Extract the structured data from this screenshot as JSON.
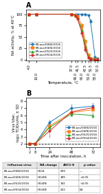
{
  "chart_data": [
    {
      "type": "line",
      "title": "A",
      "x_label": "Temperature, °C",
      "y_label": "NA activity, % at 40°C",
      "x": [
        4.0,
        10.0,
        37.0,
        40.0,
        41.5,
        45.0,
        47.5,
        50.0,
        51.5,
        55.0,
        57.0
      ],
      "xlim": [
        2,
        59
      ],
      "xticks": [
        4.0,
        10.0,
        37.0,
        40.0,
        41.5,
        45.0,
        47.5,
        50.0,
        51.5,
        55.0,
        57.0
      ],
      "ylim": [
        -2,
        110
      ],
      "yticks": [
        0,
        25,
        50,
        75,
        100
      ],
      "legend": "lower left",
      "series": [
        {
          "name": "B/Laos/0080/2016",
          "marker": "circle",
          "values": [
            100,
            100,
            100,
            100,
            100,
            100,
            100,
            98,
            85,
            5,
            2
          ],
          "errors": [
            1,
            1,
            1,
            1,
            1,
            1,
            1,
            2,
            4,
            2,
            1
          ]
        },
        {
          "name": "B/Laos/0406/2016",
          "marker": "square",
          "values": [
            100,
            100,
            100,
            98,
            95,
            75,
            40,
            10,
            3,
            1,
            0
          ],
          "errors": [
            1,
            1,
            1,
            2,
            3,
            5,
            5,
            3,
            1,
            0,
            0
          ]
        },
        {
          "name": "B/Laos/0525/2016",
          "marker": "triangle",
          "values": [
            100,
            100,
            100,
            97,
            92,
            65,
            30,
            6,
            2,
            1,
            0
          ],
          "errors": [
            1,
            1,
            1,
            2,
            3,
            5,
            5,
            2,
            1,
            0,
            0
          ]
        },
        {
          "name": "B/Laos/0554/2016",
          "marker": "circle",
          "values": [
            100,
            100,
            100,
            97,
            90,
            58,
            22,
            4,
            1,
            0,
            0
          ],
          "errors": [
            1,
            1,
            1,
            2,
            3,
            6,
            5,
            2,
            1,
            0,
            0
          ]
        }
      ]
    },
    {
      "type": "line",
      "title": "B",
      "x_label": "Time after inoculation, h",
      "y_label": "Virus titer,\nlog₁₀ TCID₅₀/mL ± SD",
      "x": [
        2,
        8,
        24,
        48,
        72
      ],
      "xlim": [
        -2,
        80
      ],
      "xticks": [
        2,
        8,
        24,
        48,
        72
      ],
      "ylim": [
        1.5,
        8.5
      ],
      "yticks": [
        2,
        3,
        4,
        5,
        6,
        7,
        8
      ],
      "reference_line": {
        "y": 2.0,
        "line_style": "dashed"
      },
      "legend": "lower right",
      "series": [
        {
          "name": "B/Laos/0080/2016",
          "marker": "circle",
          "values": [
            2.0,
            2.0,
            5.0,
            7.0,
            7.3
          ],
          "errors": [
            0.0,
            0.0,
            0.3,
            0.5,
            0.4
          ]
        },
        {
          "name": "B/Laos/0406/2016",
          "marker": "square",
          "values": [
            2.0,
            2.0,
            4.5,
            6.4,
            6.8
          ],
          "errors": [
            0.0,
            0.0,
            0.4,
            0.4,
            0.3
          ]
        },
        {
          "name": "B/Laos/0525/2016",
          "marker": "triangle",
          "values": [
            2.0,
            2.0,
            4.3,
            6.2,
            6.0
          ],
          "errors": [
            0.0,
            0.0,
            0.5,
            0.3,
            0.3
          ]
        },
        {
          "name": "B/Laos/0554/2016",
          "marker": "circle",
          "values": [
            2.0,
            2.0,
            3.8,
            6.5,
            7.1
          ],
          "errors": [
            0.0,
            0.0,
            0.8,
            0.4,
            0.3
          ]
        }
      ]
    },
    {
      "type": "table",
      "columns": [
        "Influenza virus",
        "NA change",
        "AUC1-8",
        "p value"
      ],
      "rows": [
        [
          "B/Laos/0080/2016",
          "H134",
          "259",
          "—"
        ],
        [
          "B/Laos/0406/2016",
          "H134N",
          "189",
          "<0.05"
        ],
        [
          "B/Laos/0525/2016",
          "H134N",
          "192",
          "<0.05"
        ],
        [
          "B/Laos/0554/2016",
          "H134N",
          "222",
          "NS"
        ]
      ]
    }
  ]
}
